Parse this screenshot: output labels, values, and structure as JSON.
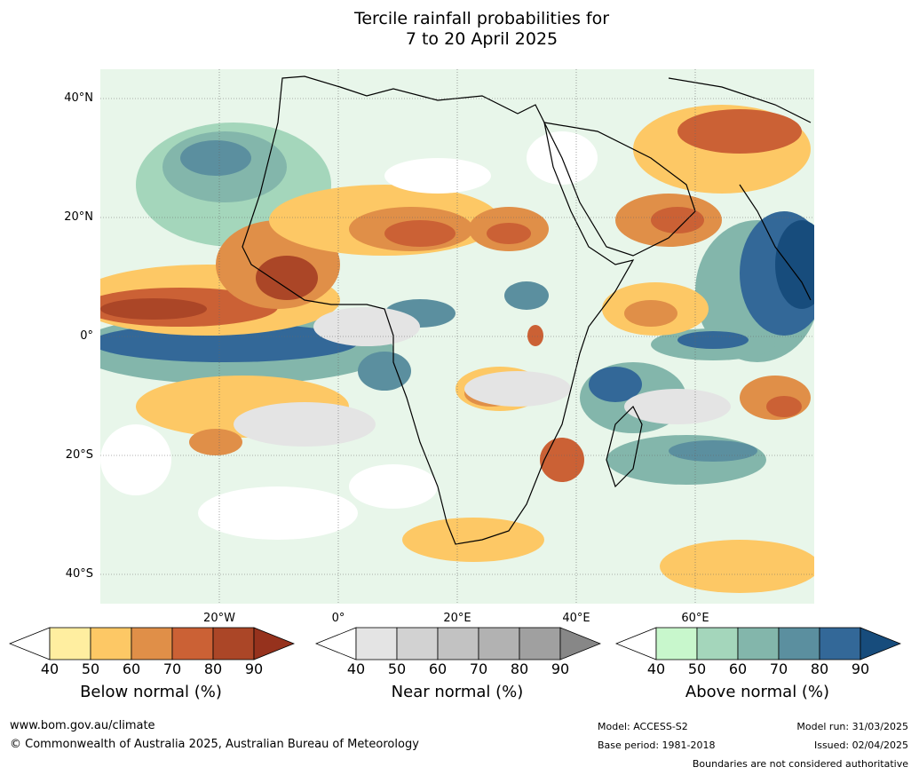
{
  "title": {
    "line1": "Tercile rainfall probabilities for",
    "line2": "7 to 20 April 2025"
  },
  "map": {
    "lat_labels": [
      "40°N",
      "20°N",
      "0°",
      "20°S",
      "40°S"
    ],
    "lon_labels": [
      "20°W",
      "0°",
      "20°E",
      "40°E",
      "60°E"
    ]
  },
  "colorbars": [
    {
      "id": "below",
      "title": "Below normal (%)",
      "ticks": [
        "40",
        "50",
        "60",
        "70",
        "80",
        "90"
      ],
      "colors": [
        "#ffeea0",
        "#fdc865",
        "#e08f48",
        "#cb6135",
        "#ab4627"
      ],
      "under_color": "#ffffff",
      "over_color": "#96321d"
    },
    {
      "id": "near",
      "title": "Near normal (%)",
      "ticks": [
        "40",
        "50",
        "60",
        "70",
        "80",
        "90"
      ],
      "colors": [
        "#e4e4e4",
        "#d2d2d2",
        "#c2c2c2",
        "#b2b2b2",
        "#a0a0a0"
      ],
      "under_color": "#ffffff",
      "over_color": "#878787"
    },
    {
      "id": "above",
      "title": "Above normal (%)",
      "ticks": [
        "40",
        "50",
        "60",
        "70",
        "80",
        "90"
      ],
      "colors": [
        "#c8f7cc",
        "#a4d6bb",
        "#83b6ab",
        "#5b8f9f",
        "#336898"
      ],
      "under_color": "#ffffff",
      "over_color": "#174c7c"
    }
  ],
  "footer": {
    "website": "www.bom.gov.au/climate",
    "copyright": "© Commonwealth of Australia 2025, Australian Bureau of Meteorology",
    "model": "Model: ACCESS-S2",
    "base_period": "Base period: 1981-2018",
    "model_run": "Model run: 31/03/2025",
    "issued": "Issued: 02/04/2025",
    "disclaimer": "Boundaries are not considered authoritative"
  }
}
